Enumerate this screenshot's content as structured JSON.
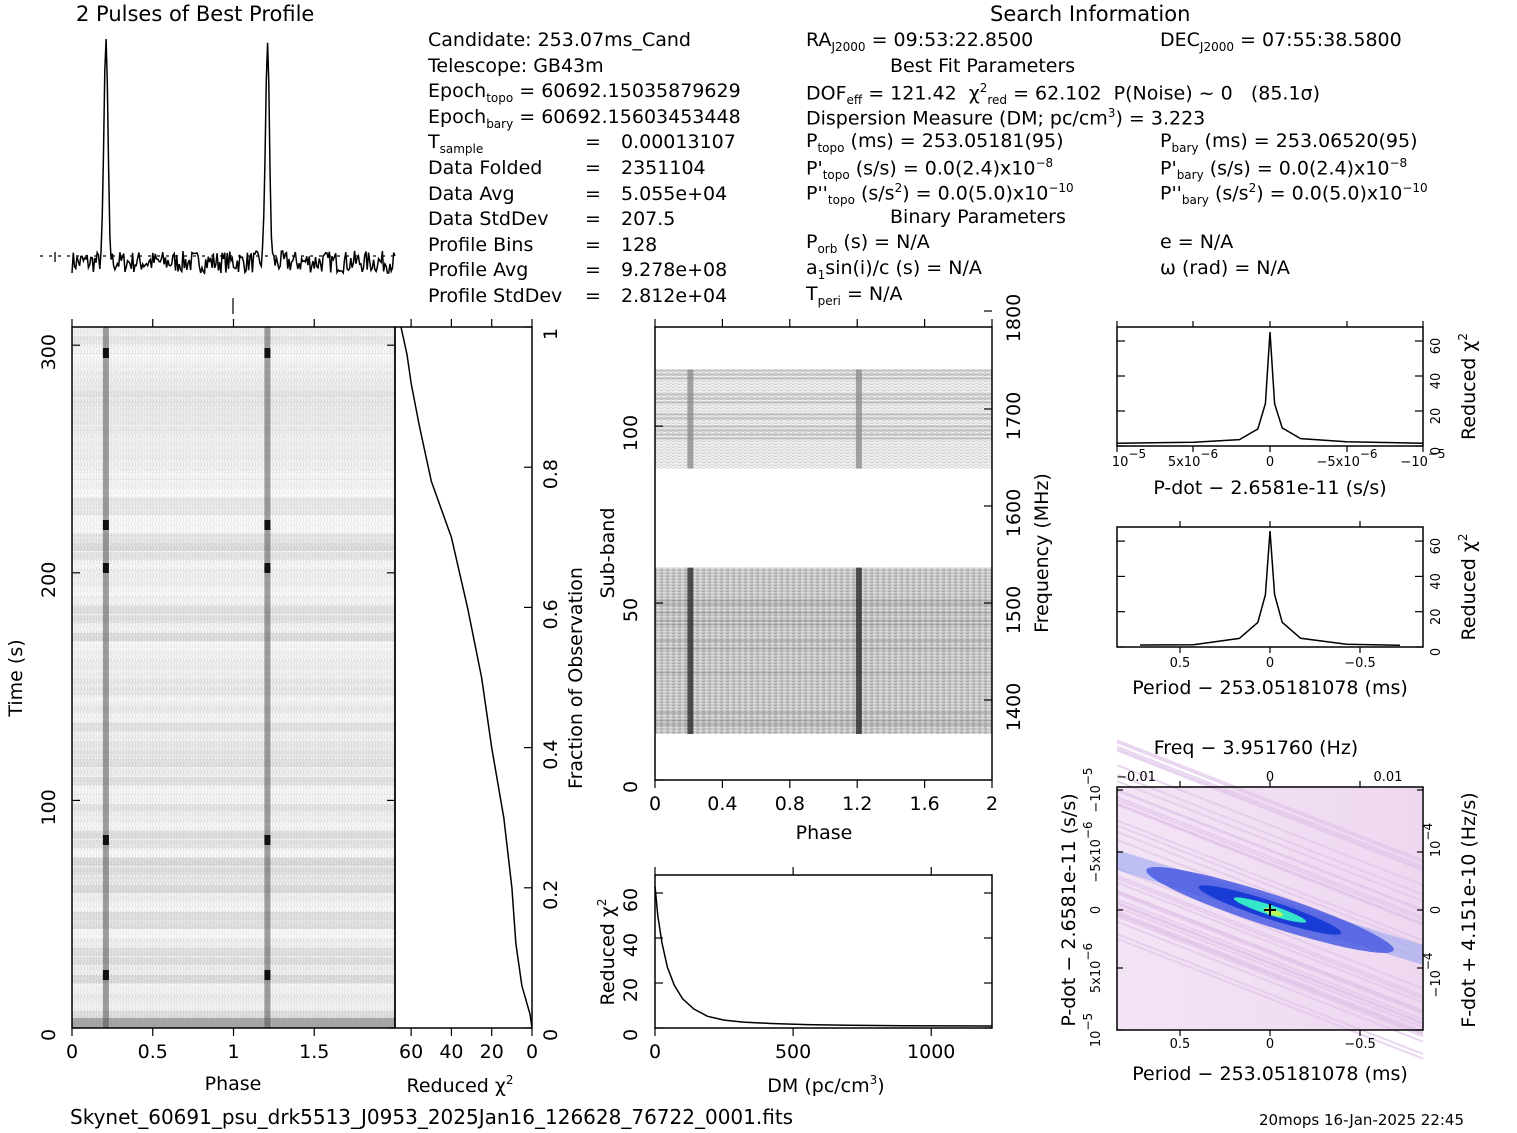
{
  "profile_title": "2 Pulses of Best Profile",
  "search_title": "Search Information",
  "info_left": [
    {
      "k": "Candidate:",
      "v": "253.07ms_Cand"
    },
    {
      "k": "Telescope:",
      "v": "GB43m"
    },
    {
      "k": "Epoch",
      "sub": "topo",
      "v": "= 60692.15035879629"
    },
    {
      "k": "Epoch",
      "sub": "bary",
      "v": "= 60692.15603453448"
    },
    {
      "k": "T",
      "sub": "sample",
      "eq": "=",
      "v": "0.00013107"
    },
    {
      "k": "Data Folded",
      "eq": "=",
      "v": "2351104"
    },
    {
      "k": "Data Avg",
      "eq": "=",
      "v": "5.055e+04"
    },
    {
      "k": "Data StdDev",
      "eq": "=",
      "v": "207.5"
    },
    {
      "k": "Profile Bins",
      "eq": "=",
      "v": "128"
    },
    {
      "k": "Profile Avg",
      "eq": "=",
      "v": "9.278e+08"
    },
    {
      "k": "Profile StdDev",
      "eq": "=",
      "v": "2.812e+04"
    }
  ],
  "info_mid": {
    "ra": "= 09:53:22.8500",
    "best_fit_header": "Best Fit Parameters",
    "dof": "= 121.42",
    "chi2": "= 62.102",
    "pnoise": "P(Noise) ~ 0",
    "sigma": "(85.1σ)",
    "dm": "Dispersion Measure (DM; pc/cm",
    "dm_val": ") = 3.223",
    "ptopo": "(ms) =  253.05181(95)",
    "pdtopo": "(s/s) = 0.0(2.4)x10",
    "pdtopo_exp": "−8",
    "pddtopo": "(s/s",
    "pddtopo_val": ") = 0.0(5.0)x10",
    "pddtopo_exp": "−10",
    "binary_header": "Binary Parameters",
    "porb": "(s) = N/A",
    "a1": "a",
    "a1_rest": "sin(i)/c (s) = N/A",
    "tperi": "= N/A"
  },
  "info_right": {
    "dec": "= 07:55:38.5800",
    "pbary": "(ms) =  253.06520(95)",
    "pdbary": "(s/s) = 0.0(2.4)x10",
    "pdbary_exp": "−8",
    "pddbary": "(s/s",
    "pddbary_val": ") = 0.0(5.0)x10",
    "pddbary_exp": "−10",
    "e": "e = N/A",
    "omega": "ω (rad) = N/A"
  },
  "footer_file": "Skynet_60691_psu_drk5513_J0953_2025Jan16_126628_76722_0001.fits",
  "footer_stamp": "20mops 16-Jan-2025 22:45",
  "colors": {
    "ink": "#000000",
    "grey": "#6a6a6a",
    "ppdot_bg": "#f1ddf3",
    "ppdot_blue": "#1a3cd6",
    "ppdot_peak": "#35e6c8"
  },
  "chart_data": [
    {
      "type": "line",
      "name": "pulse-profile",
      "title": "2 Pulses of Best Profile",
      "x_range": [
        0,
        2
      ],
      "peaks_at_phase": [
        0.21,
        1.21
      ],
      "baseline_marker": "dashed"
    },
    {
      "type": "heatmap",
      "name": "time-vs-phase",
      "xlabel": "Phase",
      "ylabel": "Time (s)",
      "x_ticks": [
        "0",
        "0.5",
        "1",
        "1.5"
      ],
      "xlim": [
        0,
        2
      ],
      "y_ticks": [
        "0",
        "100",
        "200",
        "300"
      ],
      "ylim": [
        0,
        308
      ],
      "pulse_phase": [
        0.21,
        1.21
      ]
    },
    {
      "type": "line",
      "name": "chi2-vs-time",
      "xlabel": "Reduced χ",
      "x_sup": "2",
      "ylabel": "Fraction of Observation",
      "x_ticks": [
        "60",
        "40",
        "20",
        "0"
      ],
      "xlim": [
        68,
        0
      ],
      "y_ticks": [
        "0",
        "0.2",
        "0.4",
        "0.6",
        "0.8",
        "1"
      ],
      "points": [
        [
          0,
          0
        ],
        [
          1,
          0.02
        ],
        [
          5,
          0.06
        ],
        [
          8,
          0.12
        ],
        [
          10,
          0.2
        ],
        [
          14,
          0.3
        ],
        [
          20,
          0.4
        ],
        [
          25,
          0.5
        ],
        [
          32,
          0.6
        ],
        [
          40,
          0.7
        ],
        [
          50,
          0.78
        ],
        [
          56,
          0.86
        ],
        [
          60,
          0.92
        ],
        [
          62,
          0.96
        ],
        [
          65,
          1.0
        ]
      ]
    },
    {
      "type": "heatmap",
      "name": "subband-vs-phase",
      "xlabel": "Phase",
      "ylabel": "Sub-band",
      "y2label": "Frequency (MHz)",
      "x_ticks": [
        "0",
        "0.4",
        "0.8",
        "1.2",
        "1.6",
        "2"
      ],
      "xlim": [
        0,
        2
      ],
      "y_ticks": [
        "0",
        "50",
        "100"
      ],
      "ylim": [
        0,
        128
      ],
      "y2_ticks": [
        "1400",
        "1500",
        "1600",
        "1700",
        "1800"
      ],
      "active_subbands": [
        [
          13,
          60
        ],
        [
          88,
          116
        ]
      ],
      "pulse_phase": [
        0.21,
        1.21
      ]
    },
    {
      "type": "line",
      "name": "chi2-vs-dm",
      "xlabel": "DM (pc/cm",
      "x_sup": "3",
      "ylabel": "Reduced χ",
      "y_sup": "2",
      "x_ticks": [
        "0",
        "500",
        "1000"
      ],
      "xlim": [
        0,
        1220
      ],
      "y_ticks": [
        "0",
        "20",
        "40",
        "60"
      ],
      "ylim": [
        0,
        68
      ],
      "points": [
        [
          0,
          63
        ],
        [
          10,
          50
        ],
        [
          25,
          38
        ],
        [
          45,
          27
        ],
        [
          70,
          19
        ],
        [
          100,
          13
        ],
        [
          140,
          8.5
        ],
        [
          190,
          5.2
        ],
        [
          250,
          3.5
        ],
        [
          320,
          2.6
        ],
        [
          420,
          2.0
        ],
        [
          550,
          1.5
        ],
        [
          700,
          1.2
        ],
        [
          900,
          1.0
        ],
        [
          1220,
          0.9
        ]
      ]
    },
    {
      "type": "line",
      "name": "chi2-vs-pdot",
      "xlabel": "P-dot − 2.6581e-11 (s/s)",
      "ylabel": "Reduced χ",
      "y_sup": "2",
      "x_ticks": [
        "10",
        "5x10",
        "0",
        "−5x10",
        "−10"
      ],
      "x_tick_exp": [
        "−5",
        "−6",
        "",
        "−6",
        "−5"
      ],
      "y_ticks": [
        "0",
        "20",
        "40",
        "60"
      ],
      "ylim": [
        0,
        68
      ],
      "points": [
        [
          -1,
          1.5
        ],
        [
          -0.5,
          2.0
        ],
        [
          -0.2,
          4
        ],
        [
          -0.08,
          10
        ],
        [
          -0.03,
          24
        ],
        [
          0,
          65
        ],
        [
          0.03,
          24
        ],
        [
          0.08,
          10
        ],
        [
          0.2,
          4
        ],
        [
          0.5,
          2.0
        ],
        [
          1,
          1.5
        ]
      ]
    },
    {
      "type": "line",
      "name": "chi2-vs-period",
      "xlabel": "Period − 253.05181078 (ms)",
      "ylabel": "Reduced χ",
      "y_sup": "2",
      "x_ticks": [
        "0.5",
        "0",
        "−0.5"
      ],
      "y_ticks": [
        "0",
        "20",
        "40",
        "60"
      ],
      "ylim": [
        0,
        68
      ],
      "points": [
        [
          -0.85,
          1
        ],
        [
          -0.5,
          1.5
        ],
        [
          -0.2,
          5
        ],
        [
          -0.08,
          14
        ],
        [
          -0.03,
          30
        ],
        [
          0,
          66
        ],
        [
          0.03,
          30
        ],
        [
          0.08,
          14
        ],
        [
          0.2,
          5
        ],
        [
          0.5,
          1.5
        ],
        [
          0.85,
          1
        ]
      ]
    },
    {
      "type": "heatmap",
      "name": "period-pdot-plane",
      "title": "Freq − 3.951760 (Hz)",
      "xlabel": "Period − 253.05181078 (ms)",
      "ylabel": "P-dot − 2.6581e-11 (s/s)",
      "y2label": "F-dot + 4.151e-10 (Hz/s)",
      "x_ticks": [
        "0.5",
        "0",
        "−0.5"
      ],
      "top_ticks": [
        "−0.01",
        "0",
        "0.01"
      ],
      "y_ticks": [
        "10",
        "5x10",
        "0",
        "−5x10",
        "−10"
      ],
      "y_tick_exp": [
        "−5",
        "−6",
        "",
        "−6",
        "−5"
      ],
      "y2_ticks": [
        "10",
        "0",
        "−10"
      ],
      "y2_tick_exp": [
        "−4",
        "",
        "−4"
      ]
    }
  ]
}
